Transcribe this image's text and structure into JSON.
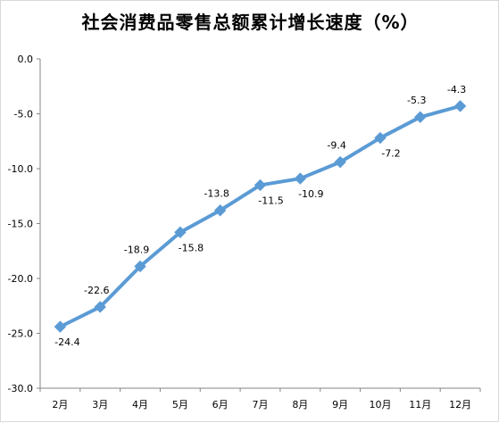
{
  "title": "社会消费品零售总额累计增长速度（%）",
  "colors": {
    "line": "#5b9bd5",
    "axis": "#000000",
    "grid": "#d9d9d9"
  },
  "chart_data": {
    "type": "line",
    "title": "社会消费品零售总额累计增长速度（%）",
    "categories": [
      "2月",
      "3月",
      "4月",
      "5月",
      "6月",
      "7月",
      "8月",
      "9月",
      "10月",
      "11月",
      "12月"
    ],
    "values": [
      -24.4,
      -22.6,
      -18.9,
      -15.8,
      -13.8,
      -11.5,
      -10.9,
      -9.4,
      -7.2,
      -5.3,
      -4.3
    ],
    "value_labels": [
      "-24.4",
      "-22.6",
      "-18.9",
      "-15.8",
      "-13.8",
      "-11.5",
      "-10.9",
      "-9.4",
      "-7.2",
      "-5.3",
      "-4.3"
    ],
    "ylim": [
      -30,
      0
    ],
    "y_ticks": [
      "0.0",
      "-5.0",
      "-10.0",
      "-15.0",
      "-20.0",
      "-25.0",
      "-30.0"
    ],
    "xlabel": "",
    "ylabel": "",
    "grid": false,
    "marker": "diamond"
  }
}
